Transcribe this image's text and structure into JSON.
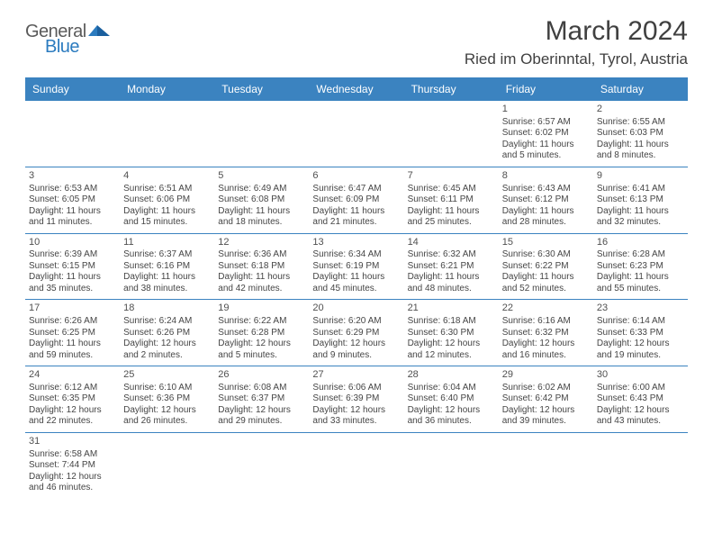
{
  "logo": {
    "general": "General",
    "blue": "Blue"
  },
  "title": "March 2024",
  "location": "Ried im Oberinntal, Tyrol, Austria",
  "colors": {
    "header_bg": "#3b83c0",
    "header_text": "#ffffff",
    "row_border": "#3b83c0",
    "body_text": "#454545",
    "title_text": "#404040",
    "logo_gray": "#5a5a5a",
    "logo_blue": "#2b7bbf",
    "background": "#ffffff"
  },
  "typography": {
    "title_fontsize": 30,
    "location_fontsize": 17,
    "dow_fontsize": 12,
    "daynum_fontsize": 11,
    "body_fontsize": 10
  },
  "dow": [
    "Sunday",
    "Monday",
    "Tuesday",
    "Wednesday",
    "Thursday",
    "Friday",
    "Saturday"
  ],
  "weeks": [
    [
      null,
      null,
      null,
      null,
      null,
      {
        "n": "1",
        "sr": "Sunrise: 6:57 AM",
        "ss": "Sunset: 6:02 PM",
        "d1": "Daylight: 11 hours",
        "d2": "and 5 minutes."
      },
      {
        "n": "2",
        "sr": "Sunrise: 6:55 AM",
        "ss": "Sunset: 6:03 PM",
        "d1": "Daylight: 11 hours",
        "d2": "and 8 minutes."
      }
    ],
    [
      {
        "n": "3",
        "sr": "Sunrise: 6:53 AM",
        "ss": "Sunset: 6:05 PM",
        "d1": "Daylight: 11 hours",
        "d2": "and 11 minutes."
      },
      {
        "n": "4",
        "sr": "Sunrise: 6:51 AM",
        "ss": "Sunset: 6:06 PM",
        "d1": "Daylight: 11 hours",
        "d2": "and 15 minutes."
      },
      {
        "n": "5",
        "sr": "Sunrise: 6:49 AM",
        "ss": "Sunset: 6:08 PM",
        "d1": "Daylight: 11 hours",
        "d2": "and 18 minutes."
      },
      {
        "n": "6",
        "sr": "Sunrise: 6:47 AM",
        "ss": "Sunset: 6:09 PM",
        "d1": "Daylight: 11 hours",
        "d2": "and 21 minutes."
      },
      {
        "n": "7",
        "sr": "Sunrise: 6:45 AM",
        "ss": "Sunset: 6:11 PM",
        "d1": "Daylight: 11 hours",
        "d2": "and 25 minutes."
      },
      {
        "n": "8",
        "sr": "Sunrise: 6:43 AM",
        "ss": "Sunset: 6:12 PM",
        "d1": "Daylight: 11 hours",
        "d2": "and 28 minutes."
      },
      {
        "n": "9",
        "sr": "Sunrise: 6:41 AM",
        "ss": "Sunset: 6:13 PM",
        "d1": "Daylight: 11 hours",
        "d2": "and 32 minutes."
      }
    ],
    [
      {
        "n": "10",
        "sr": "Sunrise: 6:39 AM",
        "ss": "Sunset: 6:15 PM",
        "d1": "Daylight: 11 hours",
        "d2": "and 35 minutes."
      },
      {
        "n": "11",
        "sr": "Sunrise: 6:37 AM",
        "ss": "Sunset: 6:16 PM",
        "d1": "Daylight: 11 hours",
        "d2": "and 38 minutes."
      },
      {
        "n": "12",
        "sr": "Sunrise: 6:36 AM",
        "ss": "Sunset: 6:18 PM",
        "d1": "Daylight: 11 hours",
        "d2": "and 42 minutes."
      },
      {
        "n": "13",
        "sr": "Sunrise: 6:34 AM",
        "ss": "Sunset: 6:19 PM",
        "d1": "Daylight: 11 hours",
        "d2": "and 45 minutes."
      },
      {
        "n": "14",
        "sr": "Sunrise: 6:32 AM",
        "ss": "Sunset: 6:21 PM",
        "d1": "Daylight: 11 hours",
        "d2": "and 48 minutes."
      },
      {
        "n": "15",
        "sr": "Sunrise: 6:30 AM",
        "ss": "Sunset: 6:22 PM",
        "d1": "Daylight: 11 hours",
        "d2": "and 52 minutes."
      },
      {
        "n": "16",
        "sr": "Sunrise: 6:28 AM",
        "ss": "Sunset: 6:23 PM",
        "d1": "Daylight: 11 hours",
        "d2": "and 55 minutes."
      }
    ],
    [
      {
        "n": "17",
        "sr": "Sunrise: 6:26 AM",
        "ss": "Sunset: 6:25 PM",
        "d1": "Daylight: 11 hours",
        "d2": "and 59 minutes."
      },
      {
        "n": "18",
        "sr": "Sunrise: 6:24 AM",
        "ss": "Sunset: 6:26 PM",
        "d1": "Daylight: 12 hours",
        "d2": "and 2 minutes."
      },
      {
        "n": "19",
        "sr": "Sunrise: 6:22 AM",
        "ss": "Sunset: 6:28 PM",
        "d1": "Daylight: 12 hours",
        "d2": "and 5 minutes."
      },
      {
        "n": "20",
        "sr": "Sunrise: 6:20 AM",
        "ss": "Sunset: 6:29 PM",
        "d1": "Daylight: 12 hours",
        "d2": "and 9 minutes."
      },
      {
        "n": "21",
        "sr": "Sunrise: 6:18 AM",
        "ss": "Sunset: 6:30 PM",
        "d1": "Daylight: 12 hours",
        "d2": "and 12 minutes."
      },
      {
        "n": "22",
        "sr": "Sunrise: 6:16 AM",
        "ss": "Sunset: 6:32 PM",
        "d1": "Daylight: 12 hours",
        "d2": "and 16 minutes."
      },
      {
        "n": "23",
        "sr": "Sunrise: 6:14 AM",
        "ss": "Sunset: 6:33 PM",
        "d1": "Daylight: 12 hours",
        "d2": "and 19 minutes."
      }
    ],
    [
      {
        "n": "24",
        "sr": "Sunrise: 6:12 AM",
        "ss": "Sunset: 6:35 PM",
        "d1": "Daylight: 12 hours",
        "d2": "and 22 minutes."
      },
      {
        "n": "25",
        "sr": "Sunrise: 6:10 AM",
        "ss": "Sunset: 6:36 PM",
        "d1": "Daylight: 12 hours",
        "d2": "and 26 minutes."
      },
      {
        "n": "26",
        "sr": "Sunrise: 6:08 AM",
        "ss": "Sunset: 6:37 PM",
        "d1": "Daylight: 12 hours",
        "d2": "and 29 minutes."
      },
      {
        "n": "27",
        "sr": "Sunrise: 6:06 AM",
        "ss": "Sunset: 6:39 PM",
        "d1": "Daylight: 12 hours",
        "d2": "and 33 minutes."
      },
      {
        "n": "28",
        "sr": "Sunrise: 6:04 AM",
        "ss": "Sunset: 6:40 PM",
        "d1": "Daylight: 12 hours",
        "d2": "and 36 minutes."
      },
      {
        "n": "29",
        "sr": "Sunrise: 6:02 AM",
        "ss": "Sunset: 6:42 PM",
        "d1": "Daylight: 12 hours",
        "d2": "and 39 minutes."
      },
      {
        "n": "30",
        "sr": "Sunrise: 6:00 AM",
        "ss": "Sunset: 6:43 PM",
        "d1": "Daylight: 12 hours",
        "d2": "and 43 minutes."
      }
    ],
    [
      {
        "n": "31",
        "sr": "Sunrise: 6:58 AM",
        "ss": "Sunset: 7:44 PM",
        "d1": "Daylight: 12 hours",
        "d2": "and 46 minutes."
      },
      null,
      null,
      null,
      null,
      null,
      null
    ]
  ]
}
